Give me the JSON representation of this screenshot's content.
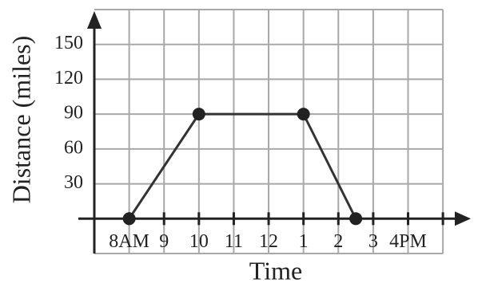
{
  "chart_data": {
    "type": "line",
    "xlabel": "Time",
    "ylabel": "Distance (miles)",
    "x": [
      8,
      10,
      13,
      14.5
    ],
    "series": [
      {
        "values": [
          0,
          90,
          90,
          0
        ],
        "color": "#333333"
      }
    ],
    "xlim": [
      7,
      17.8
    ],
    "xticks": [
      {
        "value": 8,
        "label": "8AM"
      },
      9,
      10,
      11,
      12,
      {
        "value": 13,
        "label": "1"
      },
      {
        "value": 14,
        "label": "2"
      },
      {
        "value": 15,
        "label": "3"
      },
      {
        "value": 16,
        "label": "4PM"
      },
      {
        "value": 17,
        "label": null
      }
    ],
    "ylim": [
      -30,
      180
    ],
    "yticks": [
      {
        "value": -30,
        "label": null
      },
      {
        "value": 0,
        "label": null
      },
      30,
      60,
      90,
      120,
      150,
      {
        "value": 180,
        "label": null
      }
    ],
    "grid": true
  }
}
